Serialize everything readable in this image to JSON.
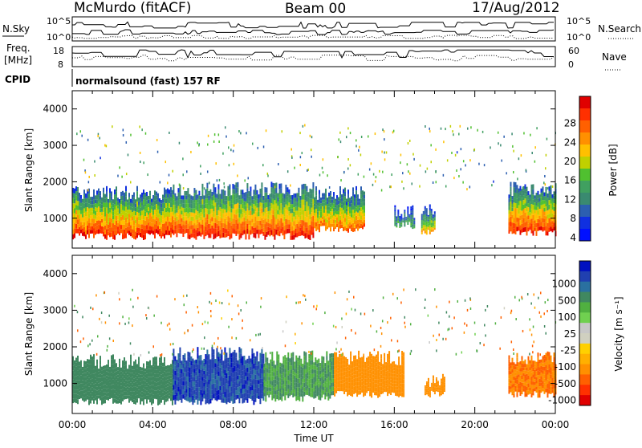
{
  "header": {
    "station": "McMurdo (fitACF)",
    "beam": "Beam 00",
    "date": "17/Aug/2012"
  },
  "panels": {
    "sky_label": "N.Sky",
    "search_label": "N.Search",
    "freq_label_1": "Freq.",
    "freq_label_2": "[MHz]",
    "nave_label": "Nave",
    "cpid_label": "CPID",
    "cpid_text": "normalsound (fast) 157 RF",
    "noise_ticks_left": [
      "10^5",
      "10^0"
    ],
    "noise_ticks_right": [
      "10^5",
      "10^0"
    ],
    "freq_ticks": [
      "18",
      "8"
    ],
    "nave_ticks": [
      "60",
      "0"
    ]
  },
  "chart_data": [
    {
      "type": "heatmap",
      "name": "Power",
      "xlabel": "",
      "ylabel": "Slant Range [km]",
      "yticks": [
        1000,
        2000,
        3000,
        4000
      ],
      "ylim": [
        180,
        4500
      ],
      "colorbar_label": "Power [dB]",
      "colorbar_ticks": [
        "28",
        "24",
        "20",
        "16",
        "12",
        "8",
        "4"
      ],
      "colorbar_colors": [
        "#e00000",
        "#ff3000",
        "#ff6000",
        "#ff9000",
        "#ffc000",
        "#c0d000",
        "#50c030",
        "#40a060",
        "#3a8a70",
        "#2c5fb0",
        "#1030e0",
        "#0010ff"
      ],
      "echo_bands": [
        {
          "start": "00:00",
          "end": "05:00",
          "range_km": [
            500,
            1700
          ],
          "peak_db": 28
        },
        {
          "start": "05:00",
          "end": "12:00",
          "range_km": [
            500,
            1800
          ],
          "peak_db": 28
        },
        {
          "start": "12:00",
          "end": "14:30",
          "range_km": [
            700,
            1700
          ],
          "peak_db": 24
        },
        {
          "start": "16:00",
          "end": "17:00",
          "range_km": [
            800,
            1200
          ],
          "peak_db": 12
        },
        {
          "start": "17:20",
          "end": "18:00",
          "range_km": [
            600,
            1200
          ],
          "peak_db": 20
        },
        {
          "start": "21:40",
          "end": "24:00",
          "range_km": [
            600,
            1800
          ],
          "peak_db": 28
        }
      ]
    },
    {
      "type": "heatmap",
      "name": "Velocity",
      "xlabel": "Time UT",
      "ylabel": "Slant Range [km]",
      "xticks": [
        "00:00",
        "04:00",
        "08:00",
        "12:00",
        "16:00",
        "20:00",
        "00:00"
      ],
      "yticks": [
        1000,
        2000,
        3000,
        4000
      ],
      "ylim": [
        180,
        4500
      ],
      "colorbar_label": "Velocity [m s⁻¹]",
      "colorbar_ticks": [
        "1000",
        "500",
        "100",
        "25",
        "-25",
        "-100",
        "-500",
        "-1000"
      ],
      "colorbar_colors": [
        "#0010c0",
        "#2040b0",
        "#2a70a0",
        "#408860",
        "#50b040",
        "#70d050",
        "#c8c8c8",
        "#d0d0c0",
        "#ffd000",
        "#ffb000",
        "#ff9000",
        "#ff6000",
        "#ff3000",
        "#e00000"
      ],
      "velocity_bands": [
        {
          "start": "00:00",
          "end": "05:00",
          "range_km": [
            500,
            1600
          ],
          "velocity_ms": 300
        },
        {
          "start": "05:00",
          "end": "09:30",
          "range_km": [
            500,
            1800
          ],
          "velocity_ms": 700
        },
        {
          "start": "09:30",
          "end": "13:00",
          "range_km": [
            600,
            1700
          ],
          "velocity_ms": 200
        },
        {
          "start": "13:00",
          "end": "16:30",
          "range_km": [
            700,
            1700
          ],
          "velocity_ms": -150
        },
        {
          "start": "17:30",
          "end": "18:30",
          "range_km": [
            700,
            1100
          ],
          "velocity_ms": -150
        },
        {
          "start": "21:40",
          "end": "24:00",
          "range_km": [
            700,
            1700
          ],
          "velocity_ms": -200
        }
      ]
    }
  ]
}
